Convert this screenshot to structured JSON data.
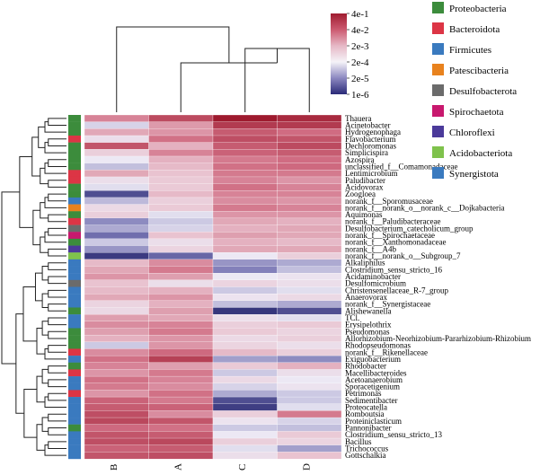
{
  "chart_data": {
    "type": "heatmap",
    "title": "",
    "columns": [
      "B",
      "A",
      "C",
      "D"
    ],
    "colorbar": {
      "labels": [
        "4e-1",
        "4e-2",
        "2e-3",
        "2e-4",
        "2e-5",
        "1e-6"
      ],
      "scale": "log",
      "colors": [
        "#a01c30",
        "#cc5a70",
        "#e6b8c6",
        "#f5f3f8",
        "#8c88c0",
        "#2a2a78"
      ]
    },
    "legend": {
      "placement": "right",
      "items": [
        {
          "name": "Proteobacteria",
          "color": "#3c8c3c"
        },
        {
          "name": "Bacteroidota",
          "color": "#dc3545"
        },
        {
          "name": "Firmicutes",
          "color": "#3a7abf"
        },
        {
          "name": "Patescibacteria",
          "color": "#e8821e"
        },
        {
          "name": "Desulfobacterota",
          "color": "#6b6b6b"
        },
        {
          "name": "Spirochaetota",
          "color": "#c8186e"
        },
        {
          "name": "Chloroflexi",
          "color": "#4b3a9a"
        },
        {
          "name": "Acidobacteriota",
          "color": "#7fc24c"
        },
        {
          "name": "Synergistota",
          "color": "#3a7abf"
        }
      ]
    },
    "rows": [
      {
        "label": "Thauera",
        "phylum": "Proteobacteria",
        "values": [
          0.7,
          0.85,
          1.0,
          0.95
        ]
      },
      {
        "label": "Acinetobacter",
        "phylum": "Proteobacteria",
        "values": [
          0.38,
          0.65,
          0.9,
          0.9
        ]
      },
      {
        "label": "Hydrogenophaga",
        "phylum": "Proteobacteria",
        "values": [
          0.62,
          0.66,
          0.8,
          0.75
        ]
      },
      {
        "label": "Flavobacterium",
        "phylum": "Bacteroidota",
        "values": [
          0.46,
          0.74,
          0.84,
          0.82
        ]
      },
      {
        "label": "Dechloromonas",
        "phylum": "Proteobacteria",
        "values": [
          0.82,
          0.6,
          0.8,
          0.85
        ]
      },
      {
        "label": "Simplicispira",
        "phylum": "Proteobacteria",
        "values": [
          0.52,
          0.7,
          0.78,
          0.8
        ]
      },
      {
        "label": "Azospira",
        "phylum": "Proteobacteria",
        "values": [
          0.42,
          0.6,
          0.72,
          0.75
        ]
      },
      {
        "label": "unclassified_f__Comamonadaceae",
        "phylum": "Proteobacteria",
        "values": [
          0.34,
          0.58,
          0.74,
          0.76
        ]
      },
      {
        "label": "Lentimicrobium",
        "phylum": "Bacteroidota",
        "values": [
          0.62,
          0.56,
          0.72,
          0.72
        ]
      },
      {
        "label": "Paludibacter",
        "phylum": "Bacteroidota",
        "values": [
          0.46,
          0.54,
          0.7,
          0.66
        ]
      },
      {
        "label": "Acidovorax",
        "phylum": "Proteobacteria",
        "values": [
          0.4,
          0.54,
          0.74,
          0.7
        ]
      },
      {
        "label": "Zoogloea",
        "phylum": "Proteobacteria",
        "values": [
          0.1,
          0.58,
          0.7,
          0.7
        ]
      },
      {
        "label": "norank_f__Sporomusaceae",
        "phylum": "Firmicutes",
        "values": [
          0.33,
          0.52,
          0.68,
          0.66
        ]
      },
      {
        "label": "norank_f__norank_o__norank_c__Dojkabacteria",
        "phylum": "Patescibacteria",
        "values": [
          0.48,
          0.54,
          0.72,
          0.7
        ]
      },
      {
        "label": "Aquimonas",
        "phylum": "Proteobacteria",
        "values": [
          0.52,
          0.4,
          0.66,
          0.66
        ]
      },
      {
        "label": "norank_f__Paludibacteraceae",
        "phylum": "Bacteroidota",
        "values": [
          0.24,
          0.36,
          0.62,
          0.6
        ]
      },
      {
        "label": "Desulfobacterium_catecholicum_group",
        "phylum": "Desulfobacterota",
        "values": [
          0.3,
          0.38,
          0.6,
          0.62
        ]
      },
      {
        "label": "norank_f__Spirochaetaceae",
        "phylum": "Spirochaetota",
        "values": [
          0.18,
          0.56,
          0.64,
          0.62
        ]
      },
      {
        "label": "norank_f__Xanthomonadaceae",
        "phylum": "Proteobacteria",
        "values": [
          0.36,
          0.46,
          0.6,
          0.58
        ]
      },
      {
        "label": "norank_f__A4b",
        "phylum": "Chloroflexi",
        "values": [
          0.26,
          0.5,
          0.62,
          0.62
        ]
      },
      {
        "label": "norank_f__norank_o__Subgroup_7",
        "phylum": "Acidobacteriota",
        "values": [
          0.05,
          0.16,
          0.42,
          0.52
        ]
      },
      {
        "label": "Alkaliphilus",
        "phylum": "Firmicutes",
        "values": [
          0.58,
          0.68,
          0.26,
          0.3
        ]
      },
      {
        "label": "Clostridium_sensu_stricto_16",
        "phylum": "Firmicutes",
        "values": [
          0.62,
          0.72,
          0.22,
          0.34
        ]
      },
      {
        "label": "Acidaminobacter",
        "phylum": "Firmicutes",
        "values": [
          0.66,
          0.64,
          0.42,
          0.44
        ]
      },
      {
        "label": "Desulfomicrobium",
        "phylum": "Desulfobacterota",
        "values": [
          0.56,
          0.46,
          0.5,
          0.46
        ]
      },
      {
        "label": "Christensenellaceae_R-7_group",
        "phylum": "Firmicutes",
        "values": [
          0.58,
          0.6,
          0.36,
          0.4
        ]
      },
      {
        "label": "Anaerovorax",
        "phylum": "Firmicutes",
        "values": [
          0.62,
          0.66,
          0.44,
          0.48
        ]
      },
      {
        "label": "norank_f__Synergistaceae",
        "phylum": "Synergistota",
        "values": [
          0.5,
          0.6,
          0.34,
          0.3
        ]
      },
      {
        "label": "Alishewanella",
        "phylum": "Proteobacteria",
        "values": [
          0.48,
          0.64,
          0.04,
          0.1
        ]
      },
      {
        "label": "TCl.",
        "phylum": "Firmicutes",
        "values": [
          0.64,
          0.62,
          0.46,
          0.4
        ]
      },
      {
        "label": "Erysipelothrix",
        "phylum": "Firmicutes",
        "values": [
          0.68,
          0.7,
          0.52,
          0.54
        ]
      },
      {
        "label": "Pseudomonas",
        "phylum": "Proteobacteria",
        "values": [
          0.64,
          0.72,
          0.54,
          0.5
        ]
      },
      {
        "label": "Allorhizobium-Neorhizobium-Pararhizobium-Rhizobium",
        "phylum": "Proteobacteria",
        "values": [
          0.6,
          0.66,
          0.48,
          0.52
        ]
      },
      {
        "label": "Rhodopseudomonas",
        "phylum": "Proteobacteria",
        "values": [
          0.36,
          0.66,
          0.5,
          0.46
        ]
      },
      {
        "label": "norank_f__Rikenellaceae",
        "phylum": "Bacteroidota",
        "values": [
          0.68,
          0.76,
          0.58,
          0.52
        ]
      },
      {
        "label": "Exiguobacterium",
        "phylum": "Firmicutes",
        "values": [
          0.74,
          0.88,
          0.28,
          0.24
        ]
      },
      {
        "label": "Rhodobacter",
        "phylum": "Proteobacteria",
        "values": [
          0.7,
          0.64,
          0.54,
          0.6
        ]
      },
      {
        "label": "Macellibacteroides",
        "phylum": "Bacteroidota",
        "values": [
          0.66,
          0.72,
          0.36,
          0.46
        ]
      },
      {
        "label": "Acetoanaerobium",
        "phylum": "Firmicutes",
        "values": [
          0.74,
          0.7,
          0.48,
          0.42
        ]
      },
      {
        "label": "Sporacetigenium",
        "phylum": "Firmicutes",
        "values": [
          0.72,
          0.68,
          0.38,
          0.44
        ]
      },
      {
        "label": "Petrimonas",
        "phylum": "Bacteroidota",
        "values": [
          0.66,
          0.74,
          0.3,
          0.36
        ]
      },
      {
        "label": "Sedimentibacter",
        "phylum": "Firmicutes",
        "values": [
          0.78,
          0.72,
          0.1,
          0.36
        ]
      },
      {
        "label": "Proteocatella",
        "phylum": "Firmicutes",
        "values": [
          0.8,
          0.78,
          0.06,
          0.4
        ]
      },
      {
        "label": "Romboutsia",
        "phylum": "Firmicutes",
        "values": [
          0.84,
          0.68,
          0.52,
          0.72
        ]
      },
      {
        "label": "Proteiniclasticum",
        "phylum": "Firmicutes",
        "values": [
          0.86,
          0.82,
          0.44,
          0.38
        ]
      },
      {
        "label": "Pannonibacter",
        "phylum": "Proteobacteria",
        "values": [
          0.76,
          0.74,
          0.36,
          0.34
        ]
      },
      {
        "label": "Clostridium_sensu_stricto_13",
        "phylum": "Firmicutes",
        "values": [
          0.82,
          0.8,
          0.42,
          0.54
        ]
      },
      {
        "label": "Bacillus",
        "phylum": "Firmicutes",
        "values": [
          0.84,
          0.86,
          0.52,
          0.5
        ]
      },
      {
        "label": "Trichococcus",
        "phylum": "Firmicutes",
        "values": [
          0.78,
          0.8,
          0.4,
          0.28
        ]
      },
      {
        "label": "Gottschalkia",
        "phylum": "Firmicutes",
        "values": [
          0.82,
          0.84,
          0.46,
          0.56
        ]
      }
    ]
  }
}
